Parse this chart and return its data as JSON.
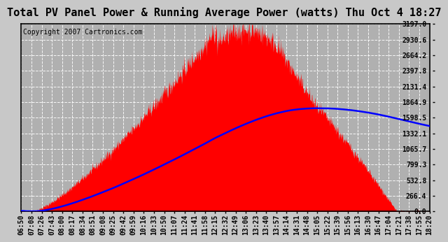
{
  "title": "Total PV Panel Power & Running Average Power (watts) Thu Oct 4 18:27",
  "copyright": "Copyright 2007 Cartronics.com",
  "background_color": "#c8c8c8",
  "plot_bg_color": "#b0b0b0",
  "y_ticks": [
    0.0,
    266.4,
    532.8,
    799.3,
    1065.7,
    1332.1,
    1598.5,
    1864.9,
    2131.4,
    2397.8,
    2664.2,
    2930.6,
    3197.0
  ],
  "y_max": 3197.0,
  "y_min": 0.0,
  "x_labels": [
    "06:50",
    "07:08",
    "07:26",
    "07:43",
    "08:00",
    "08:17",
    "08:34",
    "08:51",
    "09:08",
    "09:25",
    "09:42",
    "09:59",
    "10:16",
    "10:33",
    "10:50",
    "11:07",
    "11:24",
    "11:41",
    "11:58",
    "12:15",
    "12:32",
    "12:49",
    "13:06",
    "13:23",
    "13:40",
    "13:57",
    "14:14",
    "14:31",
    "14:48",
    "15:05",
    "15:22",
    "15:39",
    "15:56",
    "16:13",
    "16:30",
    "16:47",
    "17:04",
    "17:21",
    "17:38",
    "17:55",
    "18:20"
  ],
  "title_fontsize": 11,
  "copyright_fontsize": 7,
  "tick_fontsize": 7,
  "pv_color": "#ff0000",
  "avg_color": "#0000ff"
}
